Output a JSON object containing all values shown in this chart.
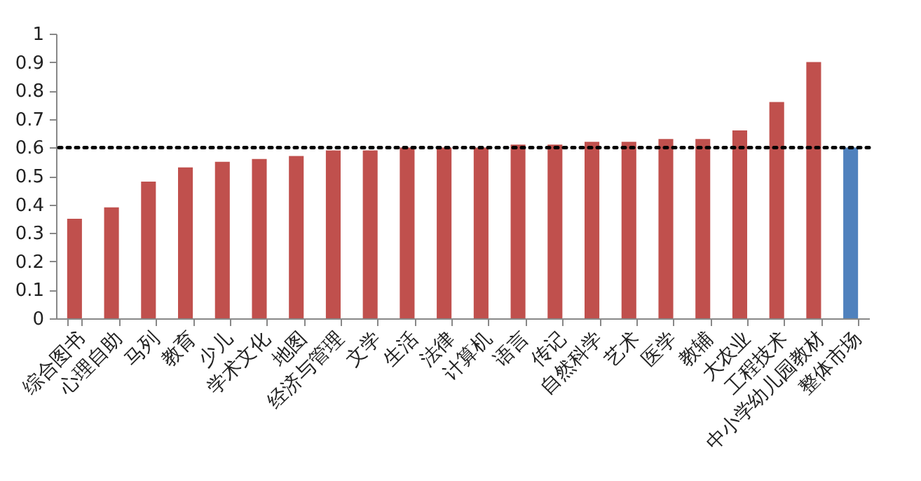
{
  "chart_data": {
    "type": "bar",
    "categories": [
      "综合图书",
      "心理自助",
      "马列",
      "教育",
      "少儿",
      "学术文化",
      "地图",
      "经济与管理",
      "文学",
      "生活",
      "法律",
      "计算机",
      "语言",
      "传记",
      "自然科学",
      "艺术",
      "医学",
      "教辅",
      "大农业",
      "工程技术",
      "中小学幼儿园教材",
      "整体市场"
    ],
    "values": [
      0.35,
      0.39,
      0.48,
      0.53,
      0.55,
      0.56,
      0.57,
      0.59,
      0.59,
      0.6,
      0.6,
      0.6,
      0.61,
      0.61,
      0.62,
      0.62,
      0.63,
      0.63,
      0.66,
      0.76,
      0.9,
      0.6
    ],
    "colors": [
      "#c0504d",
      "#c0504d",
      "#c0504d",
      "#c0504d",
      "#c0504d",
      "#c0504d",
      "#c0504d",
      "#c0504d",
      "#c0504d",
      "#c0504d",
      "#c0504d",
      "#c0504d",
      "#c0504d",
      "#c0504d",
      "#c0504d",
      "#c0504d",
      "#c0504d",
      "#c0504d",
      "#c0504d",
      "#c0504d",
      "#c0504d",
      "#4f81bd"
    ],
    "ylim": [
      0,
      1
    ],
    "yticks": [
      0,
      0.1,
      0.2,
      0.3,
      0.4,
      0.5,
      0.6,
      0.7,
      0.8,
      0.9,
      1
    ],
    "ref_lines": [
      {
        "axis": "y",
        "value": 0.6,
        "color": "#000000",
        "line_style": "dotted"
      }
    ],
    "grid": false
  }
}
